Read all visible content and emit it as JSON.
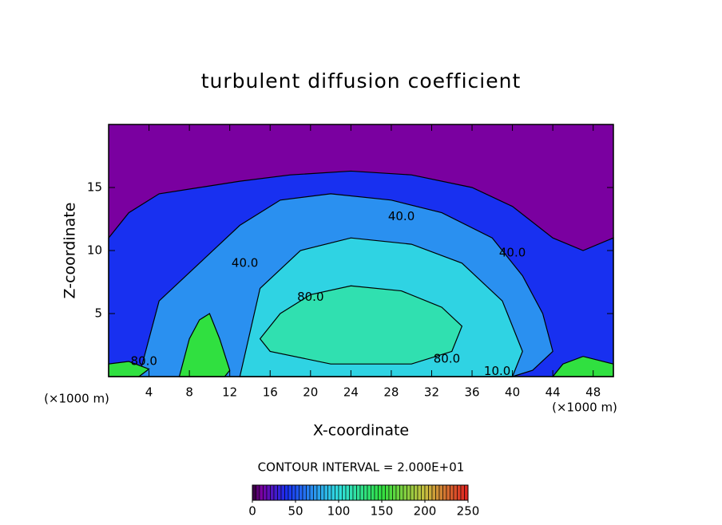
{
  "chart_data": {
    "type": "contour",
    "title": "turbulent diffusion coefficient",
    "x_label": "X-coordinate",
    "y_label": "Z-coordinate",
    "x_unit": "(×1000 m)",
    "y_unit": "(×1000 m)",
    "contour_interval": "CONTOUR INTERVAL = 2.000E+01",
    "xlim": [
      0,
      50
    ],
    "ylim": [
      0,
      20
    ],
    "xticks": [
      4,
      8,
      12,
      16,
      20,
      24,
      28,
      32,
      36,
      40,
      44,
      48
    ],
    "yticks": [
      5,
      10,
      15
    ],
    "background_level": 10,
    "regions": [
      {
        "level": 40,
        "x": [
          0,
          0,
          2,
          5,
          9,
          13,
          18,
          24,
          30,
          36,
          40,
          44,
          47,
          50,
          50
        ],
        "z": [
          0,
          11,
          13,
          14.5,
          15,
          15.5,
          16,
          16.3,
          16,
          15,
          13.5,
          11,
          10,
          11,
          0
        ]
      },
      {
        "level": 70,
        "x": [
          3,
          5,
          9,
          13,
          17,
          22,
          28,
          33,
          38,
          41,
          43,
          44,
          42,
          40,
          10
        ],
        "z": [
          0,
          6,
          9,
          12,
          14,
          14.5,
          14,
          13,
          11,
          8,
          5,
          2,
          0.5,
          0,
          0
        ]
      },
      {
        "level": 95,
        "x": [
          13,
          15,
          19,
          24,
          30,
          35,
          39,
          41,
          40,
          13
        ],
        "z": [
          0,
          7,
          10,
          11,
          10.5,
          9,
          6,
          2,
          0,
          0
        ]
      },
      {
        "level": 115,
        "x": [
          15,
          17,
          20,
          24,
          29,
          33,
          35,
          34,
          30,
          22,
          16
        ],
        "z": [
          3,
          5,
          6.5,
          7.2,
          6.8,
          5.5,
          4,
          2,
          1,
          1,
          2
        ]
      },
      {
        "level": 150,
        "x": [
          7,
          8,
          9,
          10,
          11,
          12,
          11.5,
          10,
          8
        ],
        "z": [
          0,
          3,
          4.5,
          5,
          3,
          0.5,
          0,
          0,
          0
        ]
      },
      {
        "level": 150,
        "x": [
          44,
          45,
          47,
          49,
          50,
          50
        ],
        "z": [
          0,
          1,
          1.6,
          1.2,
          1,
          0
        ]
      },
      {
        "level": 150,
        "x": [
          0,
          0,
          2,
          4,
          3
        ],
        "z": [
          0,
          1,
          1.2,
          0.6,
          0
        ]
      }
    ],
    "annotations": [
      {
        "text": "40.0",
        "x": 29,
        "z": 12.7
      },
      {
        "text": "40.0",
        "x": 40,
        "z": 9.8
      },
      {
        "text": "40.0",
        "x": 13.5,
        "z": 9
      },
      {
        "text": "80.0",
        "x": 20,
        "z": 6.3
      },
      {
        "text": "80.0",
        "x": 33.5,
        "z": 1.4
      },
      {
        "text": "80.0",
        "x": 3.5,
        "z": 1.2
      },
      {
        "text": "10.0",
        "x": 38.5,
        "z": 0.4
      }
    ],
    "colorbar": {
      "lim": [
        0,
        250
      ],
      "ticks": [
        0,
        50,
        100,
        150,
        200,
        250
      ]
    },
    "colormap": [
      {
        "value": 0,
        "color": "#2a0030"
      },
      {
        "value": 10,
        "color": "#7a00a0"
      },
      {
        "value": 40,
        "color": "#1830f0"
      },
      {
        "value": 70,
        "color": "#2a90f0"
      },
      {
        "value": 100,
        "color": "#30e0e0"
      },
      {
        "value": 150,
        "color": "#30e040"
      },
      {
        "value": 200,
        "color": "#c8c040"
      },
      {
        "value": 250,
        "color": "#e02020"
      }
    ]
  }
}
